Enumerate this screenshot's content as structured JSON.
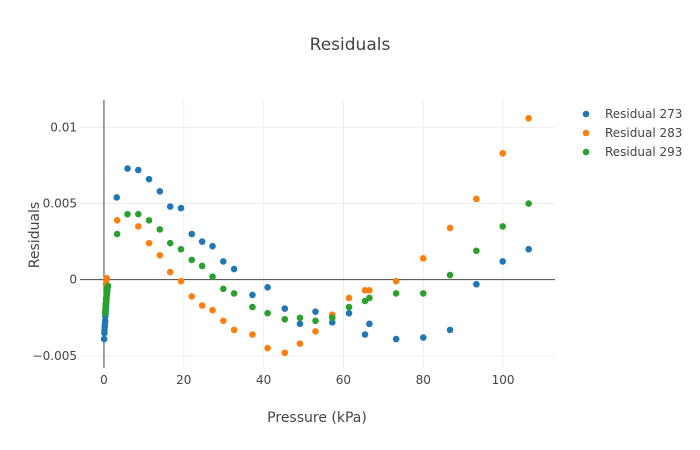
{
  "chart_data": {
    "type": "scatter",
    "title": "Residuals",
    "xlabel": "Pressure (kPa)",
    "ylabel": "Residuals",
    "xlim": [
      -6,
      113
    ],
    "ylim": [
      -0.0058,
      0.0118
    ],
    "xticks": [
      0,
      20,
      40,
      60,
      80,
      100
    ],
    "xtick_labels": [
      "0",
      "20",
      "40",
      "60",
      "80",
      "100"
    ],
    "yticks": [
      -0.005,
      0,
      0.005,
      0.01
    ],
    "ytick_labels": [
      "−0.005",
      "0",
      "0.005",
      "0.01"
    ],
    "grid": true,
    "legend_position": "top-right",
    "series": [
      {
        "name": "Residual 273",
        "color": "#1f77b4",
        "points": [
          [
            0.05,
            -0.0039
          ],
          [
            0.1,
            -0.0035
          ],
          [
            0.15,
            -0.0033
          ],
          [
            0.2,
            -0.0031
          ],
          [
            0.25,
            -0.0029
          ],
          [
            0.3,
            -0.0027
          ],
          [
            0.35,
            -0.0024
          ],
          [
            0.4,
            -0.0022
          ],
          [
            0.45,
            -0.002
          ],
          [
            0.5,
            -0.0018
          ],
          [
            0.55,
            -0.0016
          ],
          [
            0.6,
            -0.0014
          ],
          [
            0.65,
            -0.0012
          ],
          [
            0.7,
            -0.001
          ],
          [
            0.75,
            -0.0008
          ],
          [
            0.8,
            -0.0007
          ],
          [
            0.9,
            -0.0005
          ],
          [
            3.2,
            0.0054
          ],
          [
            5.9,
            0.0073
          ],
          [
            8.6,
            0.0072
          ],
          [
            11.3,
            0.0066
          ],
          [
            14,
            0.0058
          ],
          [
            16.6,
            0.0048
          ],
          [
            19.3,
            0.0047
          ],
          [
            22,
            0.003
          ],
          [
            24.6,
            0.0025
          ],
          [
            27.2,
            0.0022
          ],
          [
            29.9,
            0.0012
          ],
          [
            32.6,
            0.0007
          ],
          [
            37.2,
            -0.001
          ],
          [
            41,
            -0.0005
          ],
          [
            45.3,
            -0.0019
          ],
          [
            49.1,
            -0.0029
          ],
          [
            53,
            -0.0021
          ],
          [
            57.2,
            -0.0028
          ],
          [
            61.4,
            -0.0022
          ],
          [
            65.4,
            -0.0036
          ],
          [
            66.5,
            -0.0029
          ],
          [
            73.2,
            -0.0039
          ],
          [
            80,
            -0.0038
          ],
          [
            86.7,
            -0.0033
          ],
          [
            93.3,
            -0.0003
          ],
          [
            99.9,
            0.0012
          ],
          [
            106.4,
            0.002
          ]
        ]
      },
      {
        "name": "Residual 283",
        "color": "#ff7f0e",
        "points": [
          [
            0.5,
            -0.0003
          ],
          [
            0.6,
            0.0
          ],
          [
            0.7,
            0.0001
          ],
          [
            3.3,
            0.0039
          ],
          [
            8.6,
            0.0035
          ],
          [
            11.3,
            0.0024
          ],
          [
            14,
            0.0016
          ],
          [
            16.6,
            0.0005
          ],
          [
            19.3,
            -0.0001
          ],
          [
            22,
            -0.0011
          ],
          [
            24.6,
            -0.0017
          ],
          [
            27.2,
            -0.002
          ],
          [
            29.9,
            -0.0027
          ],
          [
            32.6,
            -0.0033
          ],
          [
            37.2,
            -0.0036
          ],
          [
            41,
            -0.0045
          ],
          [
            45.3,
            -0.0048
          ],
          [
            49.1,
            -0.0042
          ],
          [
            53,
            -0.0034
          ],
          [
            57.2,
            -0.0023
          ],
          [
            61.4,
            -0.0012
          ],
          [
            65.4,
            -0.0007
          ],
          [
            66.5,
            -0.0007
          ],
          [
            73.2,
            -0.0001
          ],
          [
            80,
            0.0014
          ],
          [
            86.7,
            0.0034
          ],
          [
            93.3,
            0.0053
          ],
          [
            99.9,
            0.0083
          ],
          [
            106.4,
            0.0106
          ]
        ]
      },
      {
        "name": "Residual 293",
        "color": "#2ca02c",
        "points": [
          [
            0.3,
            -0.0022
          ],
          [
            0.35,
            -0.002
          ],
          [
            0.4,
            -0.0018
          ],
          [
            0.45,
            -0.0016
          ],
          [
            0.5,
            -0.0015
          ],
          [
            0.55,
            -0.0013
          ],
          [
            0.6,
            -0.0012
          ],
          [
            0.65,
            -0.0011
          ],
          [
            0.7,
            -0.001
          ],
          [
            0.75,
            -0.0009
          ],
          [
            0.8,
            -0.0007
          ],
          [
            0.85,
            -0.0006
          ],
          [
            0.9,
            -0.0005
          ],
          [
            1.0,
            -0.0004
          ],
          [
            3.3,
            0.003
          ],
          [
            5.9,
            0.0043
          ],
          [
            8.6,
            0.0043
          ],
          [
            11.3,
            0.0039
          ],
          [
            14,
            0.0033
          ],
          [
            16.6,
            0.0024
          ],
          [
            19.3,
            0.002
          ],
          [
            22,
            0.0013
          ],
          [
            24.6,
            0.0009
          ],
          [
            27.2,
            0.0002
          ],
          [
            29.9,
            -0.0006
          ],
          [
            32.6,
            -0.0009
          ],
          [
            37.2,
            -0.0018
          ],
          [
            41,
            -0.0022
          ],
          [
            45.3,
            -0.0026
          ],
          [
            49.1,
            -0.0025
          ],
          [
            53,
            -0.0027
          ],
          [
            57.2,
            -0.0025
          ],
          [
            61.4,
            -0.0018
          ],
          [
            65.4,
            -0.0014
          ],
          [
            66.5,
            -0.0012
          ],
          [
            73.2,
            -0.0009
          ],
          [
            80,
            -0.0009
          ],
          [
            86.7,
            0.0003
          ],
          [
            93.3,
            0.0019
          ],
          [
            99.9,
            0.0035
          ],
          [
            106.4,
            0.005
          ]
        ]
      }
    ]
  }
}
